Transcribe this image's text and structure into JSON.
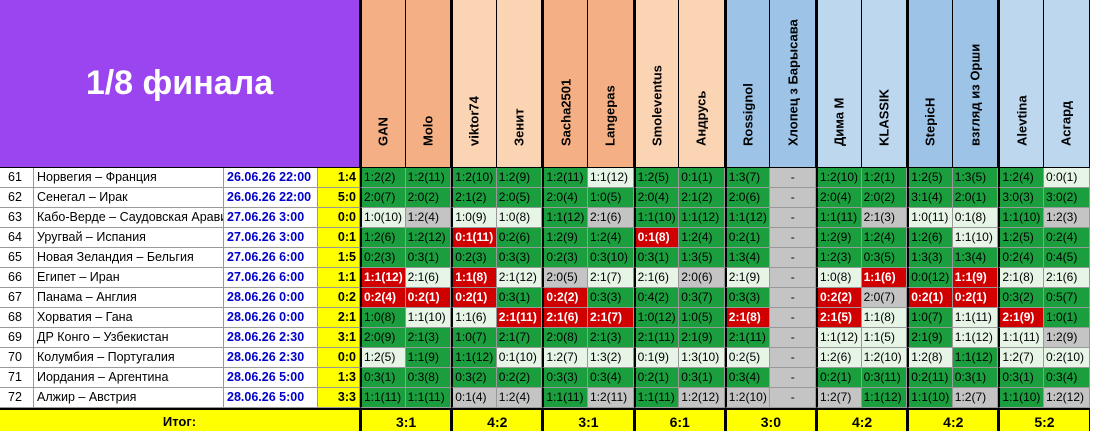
{
  "title": "1/8 финала",
  "participants": [
    {
      "name": "GAN",
      "color": "#f4b084"
    },
    {
      "name": "Molo",
      "color": "#f4b084"
    },
    {
      "name": "viktor74",
      "color": "#fbd4b4"
    },
    {
      "name": "Зенит",
      "color": "#fbd4b4"
    },
    {
      "name": "Sacha2501",
      "color": "#f4b084"
    },
    {
      "name": "Langepas",
      "color": "#f4b084"
    },
    {
      "name": "Smoleventus",
      "color": "#fbd4b4"
    },
    {
      "name": "Андрусь",
      "color": "#fbd4b4"
    },
    {
      "name": "Rossignol",
      "color": "#9dc3e6"
    },
    {
      "name": "Хлопец з Барысава",
      "color": "#9dc3e6"
    },
    {
      "name": "Дима М",
      "color": "#bdd7ee"
    },
    {
      "name": "KLASSIK",
      "color": "#bdd7ee"
    },
    {
      "name": "StepicH",
      "color": "#9dc3e6"
    },
    {
      "name": "взгляд из Орши",
      "color": "#9dc3e6"
    },
    {
      "name": "Alevtina",
      "color": "#bdd7ee"
    },
    {
      "name": "Асгард",
      "color": "#bdd7ee"
    }
  ],
  "rows": [
    {
      "num": "61",
      "match": "Норвегия – Франция",
      "date": "26.06.26 22:00",
      "result": "1:4",
      "preds": [
        [
          "1:2(2)",
          "g"
        ],
        [
          "1:2(11)",
          "g"
        ],
        [
          "1:2(10)",
          "g"
        ],
        [
          "1:2(9)",
          "g"
        ],
        [
          "1:2(11)",
          "g"
        ],
        [
          "1:1(12)",
          "lg"
        ],
        [
          "1:2(5)",
          "g"
        ],
        [
          "0:1(1)",
          "g"
        ],
        [
          "1:3(7)",
          "g"
        ],
        [
          "-",
          "gy"
        ],
        [
          "1:2(10)",
          "g"
        ],
        [
          "1:2(1)",
          "g"
        ],
        [
          "1:2(5)",
          "g"
        ],
        [
          "1:3(5)",
          "g"
        ],
        [
          "1:2(4)",
          "g"
        ],
        [
          "0:0(1)",
          "lg"
        ]
      ]
    },
    {
      "num": "62",
      "match": "Сенегал – Ирак",
      "date": "26.06.26 22:00",
      "result": "5:0",
      "preds": [
        [
          "2:0(7)",
          "g"
        ],
        [
          "2:0(2)",
          "g"
        ],
        [
          "2:1(2)",
          "g"
        ],
        [
          "2:0(5)",
          "g"
        ],
        [
          "2:0(4)",
          "g"
        ],
        [
          "1:0(5)",
          "g"
        ],
        [
          "2:0(4)",
          "g"
        ],
        [
          "2:1(2)",
          "g"
        ],
        [
          "2:0(6)",
          "g"
        ],
        [
          "-",
          "gy"
        ],
        [
          "2:0(4)",
          "g"
        ],
        [
          "2:0(2)",
          "g"
        ],
        [
          "3:1(4)",
          "g"
        ],
        [
          "2:0(1)",
          "g"
        ],
        [
          "3:0(3)",
          "g"
        ],
        [
          "3:0(2)",
          "g"
        ]
      ]
    },
    {
      "num": "63",
      "match": "Кабо-Верде – Саудовская Аравия",
      "date": "27.06.26 3:00",
      "result": "0:0",
      "preds": [
        [
          "1:0(10)",
          "lg"
        ],
        [
          "1:2(4)",
          "gy"
        ],
        [
          "1:0(9)",
          "lg"
        ],
        [
          "1:0(8)",
          "lg"
        ],
        [
          "1:1(12)",
          "g"
        ],
        [
          "2:1(6)",
          "gy"
        ],
        [
          "1:1(10)",
          "g"
        ],
        [
          "1:1(12)",
          "g"
        ],
        [
          "1:1(12)",
          "g"
        ],
        [
          "-",
          "gy"
        ],
        [
          "1:1(11)",
          "g"
        ],
        [
          "2:1(3)",
          "gy"
        ],
        [
          "1:0(11)",
          "lg"
        ],
        [
          "0:1(8)",
          "lg"
        ],
        [
          "1:1(10)",
          "g"
        ],
        [
          "1:2(3)",
          "gy"
        ]
      ]
    },
    {
      "num": "64",
      "match": "Уругвай – Испания",
      "date": "27.06.26 3:00",
      "result": "0:1",
      "preds": [
        [
          "1:2(6)",
          "g"
        ],
        [
          "1:2(12)",
          "g"
        ],
        [
          "0:1(11)",
          "r"
        ],
        [
          "0:2(6)",
          "g"
        ],
        [
          "1:2(9)",
          "g"
        ],
        [
          "1:2(4)",
          "g"
        ],
        [
          "0:1(8)",
          "r"
        ],
        [
          "1:2(4)",
          "g"
        ],
        [
          "0:2(1)",
          "g"
        ],
        [
          "-",
          "gy"
        ],
        [
          "1:2(9)",
          "g"
        ],
        [
          "1:2(4)",
          "g"
        ],
        [
          "1:2(6)",
          "g"
        ],
        [
          "1:1(10)",
          "lg"
        ],
        [
          "1:2(5)",
          "g"
        ],
        [
          "0:2(4)",
          "g"
        ]
      ]
    },
    {
      "num": "65",
      "match": "Новая Зеландия – Бельгия",
      "date": "27.06.26 6:00",
      "result": "1:5",
      "preds": [
        [
          "0:2(3)",
          "g"
        ],
        [
          "0:3(1)",
          "g"
        ],
        [
          "0:2(3)",
          "g"
        ],
        [
          "0:3(3)",
          "g"
        ],
        [
          "0:2(3)",
          "g"
        ],
        [
          "0:3(10)",
          "g"
        ],
        [
          "0:3(1)",
          "g"
        ],
        [
          "1:3(5)",
          "g"
        ],
        [
          "1:3(4)",
          "g"
        ],
        [
          "-",
          "gy"
        ],
        [
          "1:2(3)",
          "g"
        ],
        [
          "0:3(5)",
          "g"
        ],
        [
          "1:3(3)",
          "g"
        ],
        [
          "1:3(4)",
          "g"
        ],
        [
          "0:2(4)",
          "g"
        ],
        [
          "0:4(5)",
          "g"
        ]
      ]
    },
    {
      "num": "66",
      "match": "Египет – Иран",
      "date": "27.06.26 6:00",
      "result": "1:1",
      "preds": [
        [
          "1:1(12)",
          "r"
        ],
        [
          "2:1(6)",
          "lg"
        ],
        [
          "1:1(8)",
          "r"
        ],
        [
          "2:1(12)",
          "lg"
        ],
        [
          "2:0(5)",
          "gy"
        ],
        [
          "2:1(7)",
          "lg"
        ],
        [
          "2:1(6)",
          "lg"
        ],
        [
          "2:0(6)",
          "gy"
        ],
        [
          "2:1(9)",
          "lg"
        ],
        [
          "-",
          "gy"
        ],
        [
          "1:0(8)",
          "lg"
        ],
        [
          "1:1(6)",
          "r"
        ],
        [
          "0:0(12)",
          "g"
        ],
        [
          "1:1(9)",
          "r"
        ],
        [
          "2:1(8)",
          "lg"
        ],
        [
          "2:1(6)",
          "lg"
        ]
      ]
    },
    {
      "num": "67",
      "match": "Панама – Англия",
      "date": "28.06.26 0:00",
      "result": "0:2",
      "preds": [
        [
          "0:2(4)",
          "r"
        ],
        [
          "0:2(1)",
          "r"
        ],
        [
          "0:2(1)",
          "r"
        ],
        [
          "0:3(1)",
          "g"
        ],
        [
          "0:2(2)",
          "r"
        ],
        [
          "0:3(3)",
          "g"
        ],
        [
          "0:4(2)",
          "g"
        ],
        [
          "0:3(7)",
          "g"
        ],
        [
          "0:3(3)",
          "g"
        ],
        [
          "-",
          "gy"
        ],
        [
          "0:2(2)",
          "r"
        ],
        [
          "2:0(7)",
          "gy"
        ],
        [
          "0:2(1)",
          "r"
        ],
        [
          "0:2(1)",
          "r"
        ],
        [
          "0:3(2)",
          "g"
        ],
        [
          "0:5(7)",
          "g"
        ]
      ]
    },
    {
      "num": "68",
      "match": "Хорватия – Гана",
      "date": "28.06.26 0:00",
      "result": "2:1",
      "preds": [
        [
          "1:0(8)",
          "g"
        ],
        [
          "1:1(10)",
          "lg"
        ],
        [
          "1:1(6)",
          "lg"
        ],
        [
          "2:1(11)",
          "r"
        ],
        [
          "2:1(6)",
          "r"
        ],
        [
          "2:1(7)",
          "r"
        ],
        [
          "1:0(12)",
          "g"
        ],
        [
          "1:0(5)",
          "g"
        ],
        [
          "2:1(8)",
          "r"
        ],
        [
          "-",
          "gy"
        ],
        [
          "2:1(5)",
          "r"
        ],
        [
          "1:1(8)",
          "lg"
        ],
        [
          "1:0(7)",
          "g"
        ],
        [
          "1:1(11)",
          "lg"
        ],
        [
          "2:1(9)",
          "r"
        ],
        [
          "1:0(1)",
          "g"
        ]
      ]
    },
    {
      "num": "69",
      "match": "ДР Конго – Узбекистан",
      "date": "28.06.26 2:30",
      "result": "3:1",
      "preds": [
        [
          "2:0(9)",
          "g"
        ],
        [
          "2:1(3)",
          "g"
        ],
        [
          "1:0(7)",
          "g"
        ],
        [
          "2:1(7)",
          "g"
        ],
        [
          "2:0(8)",
          "g"
        ],
        [
          "2:1(3)",
          "g"
        ],
        [
          "2:1(11)",
          "g"
        ],
        [
          "2:1(9)",
          "g"
        ],
        [
          "2:1(11)",
          "g"
        ],
        [
          "-",
          "gy"
        ],
        [
          "1:1(12)",
          "lg"
        ],
        [
          "1:1(5)",
          "lg"
        ],
        [
          "2:1(9)",
          "g"
        ],
        [
          "1:1(12)",
          "lg"
        ],
        [
          "1:1(11)",
          "lg"
        ],
        [
          "1:2(9)",
          "gy"
        ]
      ]
    },
    {
      "num": "70",
      "match": "Колумбия – Португалия",
      "date": "28.06.26 2:30",
      "result": "0:0",
      "preds": [
        [
          "1:2(5)",
          "lg"
        ],
        [
          "1:1(9)",
          "g"
        ],
        [
          "1:1(12)",
          "g"
        ],
        [
          "0:1(10)",
          "lg"
        ],
        [
          "1:2(7)",
          "lg"
        ],
        [
          "1:3(2)",
          "lg"
        ],
        [
          "0:1(9)",
          "lg"
        ],
        [
          "1:3(10)",
          "lg"
        ],
        [
          "0:2(5)",
          "lg"
        ],
        [
          "-",
          "gy"
        ],
        [
          "1:2(6)",
          "lg"
        ],
        [
          "1:2(10)",
          "lg"
        ],
        [
          "1:2(8)",
          "lg"
        ],
        [
          "1:1(12)",
          "g"
        ],
        [
          "1:2(7)",
          "lg"
        ],
        [
          "0:2(10)",
          "lg"
        ]
      ]
    },
    {
      "num": "71",
      "match": "Иордания – Аргентина",
      "date": "28.06.26 5:00",
      "result": "1:3",
      "preds": [
        [
          "0:3(1)",
          "g"
        ],
        [
          "0:3(8)",
          "g"
        ],
        [
          "0:3(2)",
          "g"
        ],
        [
          "0:2(2)",
          "g"
        ],
        [
          "0:3(3)",
          "g"
        ],
        [
          "0:3(4)",
          "g"
        ],
        [
          "0:2(1)",
          "g"
        ],
        [
          "0:3(1)",
          "g"
        ],
        [
          "0:3(4)",
          "g"
        ],
        [
          "-",
          "gy"
        ],
        [
          "0:2(1)",
          "g"
        ],
        [
          "0:3(11)",
          "g"
        ],
        [
          "0:2(11)",
          "g"
        ],
        [
          "0:3(1)",
          "g"
        ],
        [
          "0:3(1)",
          "g"
        ],
        [
          "0:3(4)",
          "g"
        ]
      ]
    },
    {
      "num": "72",
      "match": "Алжир – Австрия",
      "date": "28.06.26 5:00",
      "result": "3:3",
      "preds": [
        [
          "1:1(11)",
          "g"
        ],
        [
          "1:1(11)",
          "g"
        ],
        [
          "0:1(4)",
          "gy"
        ],
        [
          "1:2(4)",
          "gy"
        ],
        [
          "1:1(11)",
          "g"
        ],
        [
          "1:2(11)",
          "gy"
        ],
        [
          "1:1(11)",
          "g"
        ],
        [
          "1:2(12)",
          "gy"
        ],
        [
          "1:2(10)",
          "gy"
        ],
        [
          "-",
          "gy"
        ],
        [
          "1:2(7)",
          "gy"
        ],
        [
          "1:1(12)",
          "g"
        ],
        [
          "1:1(10)",
          "g"
        ],
        [
          "1:2(7)",
          "gy"
        ],
        [
          "1:1(10)",
          "g"
        ],
        [
          "1:2(12)",
          "gy"
        ]
      ]
    }
  ],
  "footer": {
    "label": "Итог:",
    "pairs": [
      "3:1",
      "4:2",
      "3:1",
      "6:1",
      "3:0",
      "4:2",
      "4:2",
      "5:2"
    ]
  }
}
